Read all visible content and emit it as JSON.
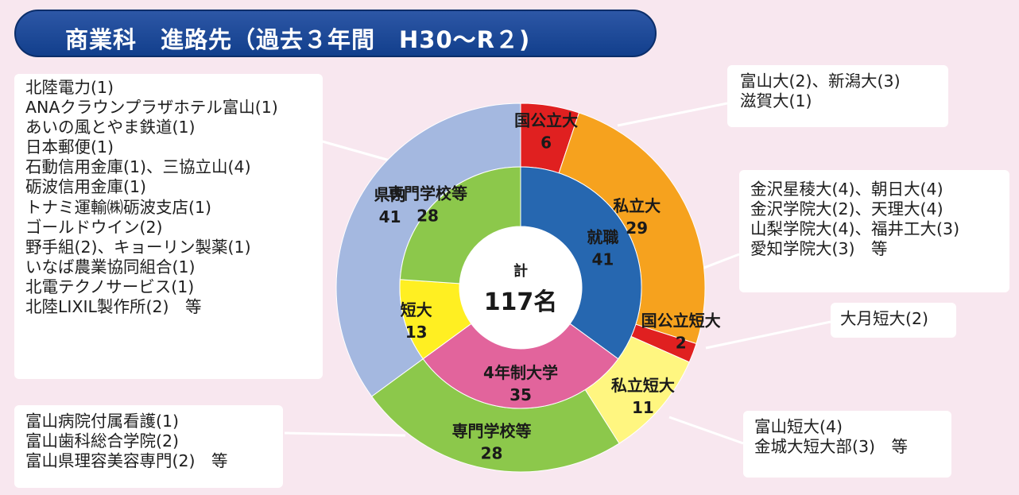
{
  "title": "商業科　進路先（過去３年間　H30〜R２)",
  "chart_data": {
    "type": "donut",
    "total_label": "計",
    "total_value": "117名",
    "inner_ring": [
      {
        "label": "就職",
        "value": 41,
        "color": "#2667b0"
      },
      {
        "label": "4年制大学",
        "value": 35,
        "color": "#e2649c"
      },
      {
        "label": "短大",
        "value": 13,
        "color": "#ffef22"
      },
      {
        "label": "専門学校等",
        "value": 28,
        "color": "#8cc84b"
      }
    ],
    "outer_ring": [
      {
        "label": "国公立大",
        "value": 6,
        "color": "#e02020"
      },
      {
        "label": "私立大",
        "value": 29,
        "color": "#f6a21e"
      },
      {
        "label": "国公立短大",
        "value": 2,
        "color": "#e02020"
      },
      {
        "label": "私立短大",
        "value": 11,
        "color": "#fff680"
      },
      {
        "label": "専門学校等",
        "value": 28,
        "color": "#8cc84b"
      },
      {
        "label": "県内",
        "value": 41,
        "color": "#a4b8e0"
      }
    ]
  },
  "callouts": {
    "employment": [
      "北陸電力(1)",
      "ANAクラウンプラザホテル富山(1)",
      "あいの風とやま鉄道(1)",
      "日本郵便(1)",
      "石動信用金庫(1)、三協立山(4)",
      "砺波信用金庫(1)",
      "トナミ運輸㈱砺波支店(1)",
      "ゴールドウイン(2)",
      "野手組(2)、キョーリン製薬(1)",
      "いなば農業協同組合(1)",
      "北電テクノサービス(1)",
      "北陸LIXIL製作所(2)　等"
    ],
    "vocational": [
      "富山病院付属看護(1)",
      "富山歯科総合学院(2)",
      "富山県理容美容専門(2)　等"
    ],
    "national_univ": [
      "富山大(2)、新潟大(3)",
      "滋賀大(1)"
    ],
    "private_univ": [
      "金沢星稜大(4)、朝日大(4)",
      "金沢学院大(2)、天理大(4)",
      "山梨学院大(4)、福井工大(3)",
      "愛知学院大(3)　等"
    ],
    "national_jc": [
      "大月短大(2)"
    ],
    "private_jc": [
      "富山短大(4)",
      "金城大短大部(3)　等"
    ]
  }
}
